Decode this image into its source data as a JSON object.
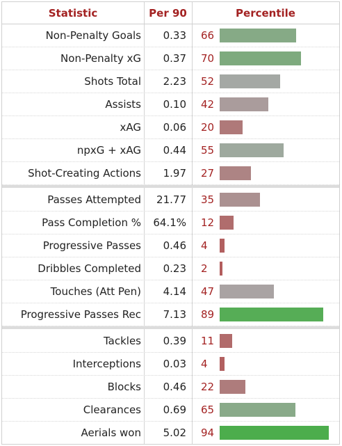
{
  "headers": {
    "statistic": "Statistic",
    "per90": "Per 90",
    "percentile": "Percentile"
  },
  "groups": [
    [
      {
        "stat": "Non-Penalty Goals",
        "per90": "0.33",
        "pct": "66"
      },
      {
        "stat": "Non-Penalty xG",
        "per90": "0.37",
        "pct": "70"
      },
      {
        "stat": "Shots Total",
        "per90": "2.23",
        "pct": "52"
      },
      {
        "stat": "Assists",
        "per90": "0.10",
        "pct": "42"
      },
      {
        "stat": "xAG",
        "per90": "0.06",
        "pct": "20"
      },
      {
        "stat": "npxG + xAG",
        "per90": "0.44",
        "pct": "55"
      },
      {
        "stat": "Shot-Creating Actions",
        "per90": "1.97",
        "pct": "27"
      }
    ],
    [
      {
        "stat": "Passes Attempted",
        "per90": "21.77",
        "pct": "35"
      },
      {
        "stat": "Pass Completion %",
        "per90": "64.1%",
        "pct": "12"
      },
      {
        "stat": "Progressive Passes",
        "per90": "0.46",
        "pct": "4"
      },
      {
        "stat": "Dribbles Completed",
        "per90": "0.23",
        "pct": "2"
      },
      {
        "stat": "Touches (Att Pen)",
        "per90": "4.14",
        "pct": "47"
      },
      {
        "stat": "Progressive Passes Rec",
        "per90": "7.13",
        "pct": "89"
      }
    ],
    [
      {
        "stat": "Tackles",
        "per90": "0.39",
        "pct": "11"
      },
      {
        "stat": "Interceptions",
        "per90": "0.03",
        "pct": "4"
      },
      {
        "stat": "Blocks",
        "per90": "0.46",
        "pct": "22"
      },
      {
        "stat": "Clearances",
        "per90": "0.69",
        "pct": "65"
      },
      {
        "stat": "Aerials won",
        "per90": "5.02",
        "pct": "94"
      }
    ]
  ],
  "colors": {
    "header_text": "#a32222",
    "low": "#b35a5a",
    "mid": "#a8a8a8",
    "high": "#3fae3f"
  }
}
